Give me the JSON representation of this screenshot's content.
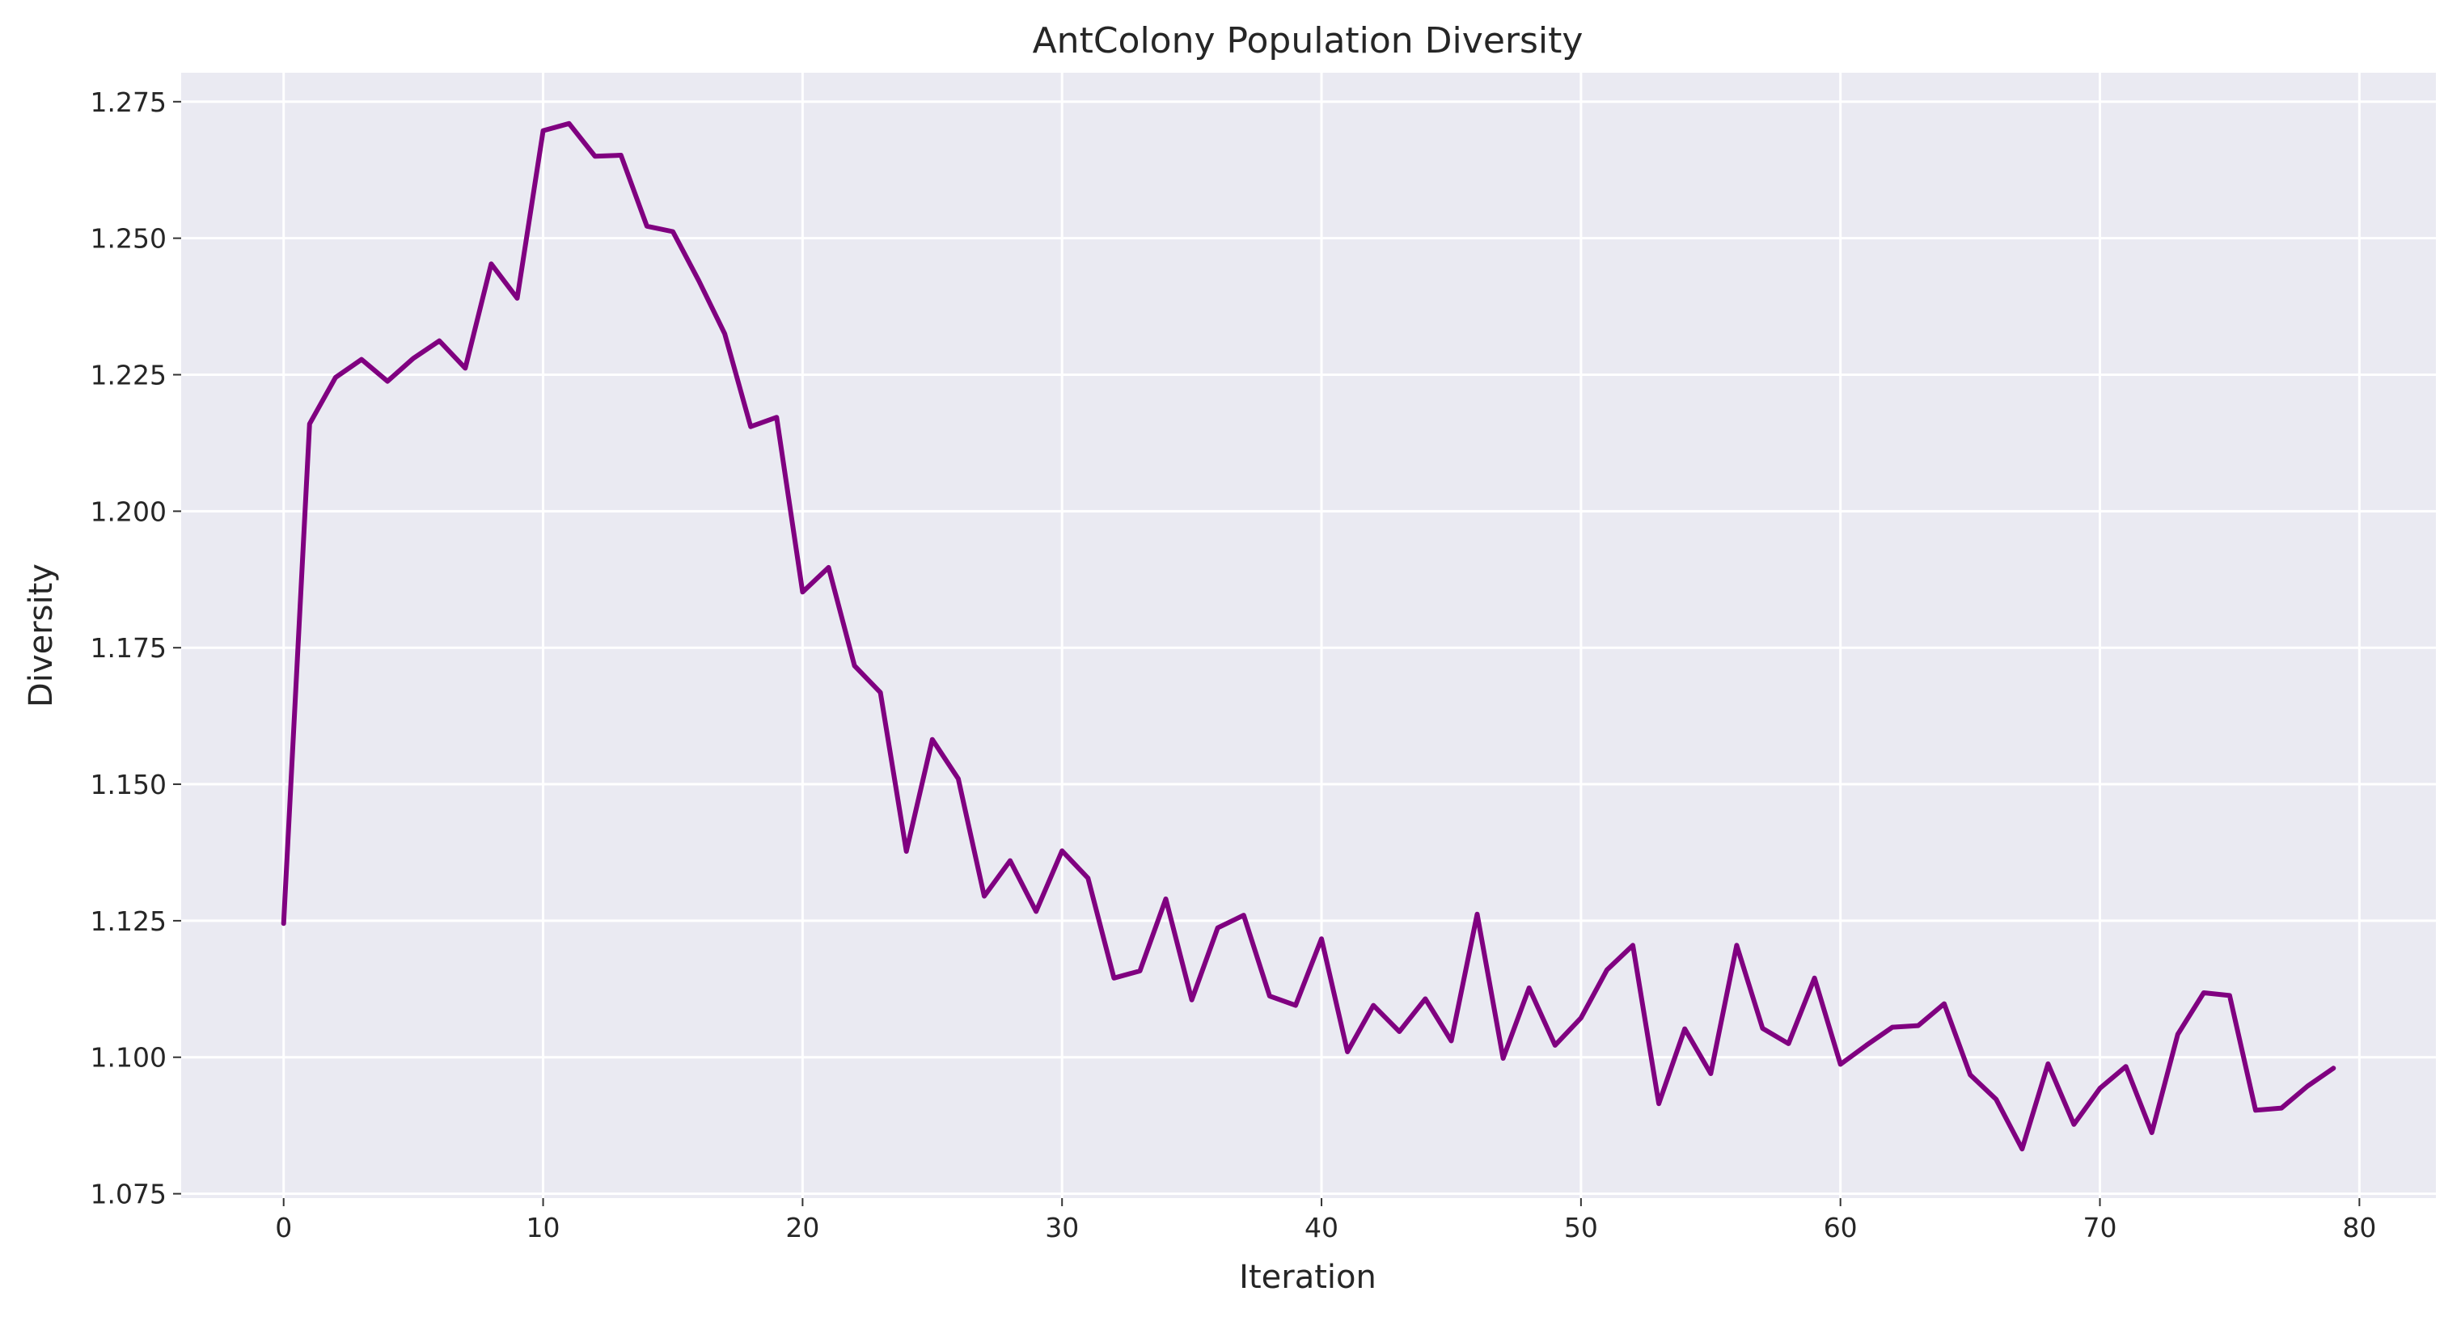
{
  "chart_data": {
    "type": "line",
    "title": "AntColony Population Diversity",
    "xlabel": "Iteration",
    "ylabel": "Diversity",
    "xlim": [
      -3.95,
      82.95
    ],
    "ylim": [
      1.0742,
      1.2803
    ],
    "xticks": [
      0,
      10,
      20,
      30,
      40,
      50,
      60,
      70,
      80
    ],
    "xtick_labels": [
      "0",
      "10",
      "20",
      "30",
      "40",
      "50",
      "60",
      "70",
      "80"
    ],
    "yticks": [
      1.075,
      1.1,
      1.125,
      1.15,
      1.175,
      1.2,
      1.225,
      1.25,
      1.275
    ],
    "ytick_labels": [
      "1.075",
      "1.100",
      "1.125",
      "1.150",
      "1.175",
      "1.200",
      "1.225",
      "1.250",
      "1.275"
    ],
    "grid": true,
    "background": "#eaeaf2",
    "series": [
      {
        "color": "#800080",
        "x": [
          0,
          1,
          2,
          3,
          4,
          5,
          6,
          7,
          8,
          9,
          10,
          11,
          12,
          13,
          14,
          15,
          16,
          17,
          18,
          19,
          20,
          21,
          22,
          23,
          24,
          25,
          26,
          27,
          28,
          29,
          30,
          31,
          32,
          33,
          34,
          35,
          36,
          37,
          38,
          39,
          40,
          41,
          42,
          43,
          44,
          45,
          46,
          47,
          48,
          49,
          50,
          51,
          52,
          53,
          54,
          55,
          56,
          57,
          58,
          59,
          60,
          61,
          62,
          63,
          64,
          65,
          66,
          67,
          68,
          69,
          70,
          71,
          72,
          73,
          74,
          75,
          76,
          77,
          78,
          79
        ],
        "y": [
          1.1245,
          1.216,
          1.2245,
          1.2278,
          1.2238,
          1.228,
          1.2312,
          1.2262,
          1.2453,
          1.239,
          1.2697,
          1.271,
          1.265,
          1.2652,
          1.2522,
          1.2512,
          1.2422,
          1.2325,
          1.2155,
          1.2172,
          1.1852,
          1.1897,
          1.1717,
          1.1668,
          1.1377,
          1.1582,
          1.151,
          1.1295,
          1.136,
          1.1267,
          1.1378,
          1.1328,
          1.1145,
          1.1158,
          1.129,
          1.1105,
          1.1237,
          1.126,
          1.1112,
          1.1095,
          1.1217,
          1.101,
          1.1095,
          1.1047,
          1.1107,
          1.103,
          1.1262,
          1.0998,
          1.1127,
          1.1022,
          1.1072,
          1.116,
          1.1205,
          1.0915,
          1.1052,
          1.097,
          1.1205,
          1.1053,
          1.1025,
          1.1145,
          1.0987,
          1.1022,
          1.1055,
          1.1058,
          1.1098,
          1.0968,
          1.0923,
          1.0832,
          1.0988,
          1.0877,
          1.0943,
          1.0983,
          1.0862,
          1.1042,
          1.1118,
          1.1113,
          1.0903,
          1.0907,
          1.0947,
          1.098
        ]
      }
    ]
  }
}
